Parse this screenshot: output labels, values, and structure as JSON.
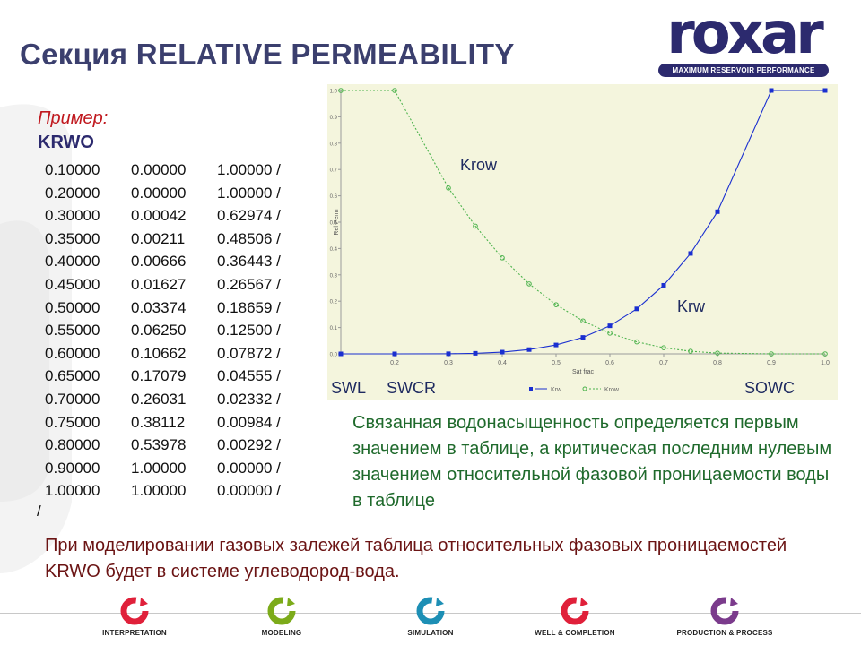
{
  "slide": {
    "title": "Секция RELATIVE PERMEABILITY"
  },
  "logo": {
    "wordmark": "roxar",
    "tagline": "MAXIMUM RESERVOIR PERFORMANCE",
    "color": "#2c2a6e"
  },
  "example": {
    "label": "Пример:",
    "keyword": "KRWO",
    "rows": [
      [
        "0.10000",
        "0.00000",
        "1.00000 /"
      ],
      [
        "0.20000",
        "0.00000",
        "1.00000 /"
      ],
      [
        "0.30000",
        "0.00042",
        "0.62974 /"
      ],
      [
        "0.35000",
        "0.00211",
        "0.48506 /"
      ],
      [
        "0.40000",
        "0.00666",
        "0.36443 /"
      ],
      [
        "0.45000",
        "0.01627",
        "0.26567 /"
      ],
      [
        "0.50000",
        "0.03374",
        "0.18659 /"
      ],
      [
        "0.55000",
        "0.06250",
        "0.12500 /"
      ],
      [
        "0.60000",
        "0.10662",
        "0.07872 /"
      ],
      [
        "0.65000",
        "0.17079",
        "0.04555 /"
      ],
      [
        "0.70000",
        "0.26031",
        "0.02332 /"
      ],
      [
        "0.75000",
        "0.38112",
        "0.00984 /"
      ],
      [
        "0.80000",
        "0.53978",
        "0.00292 /"
      ],
      [
        "0.90000",
        "1.00000",
        "0.00000 /"
      ],
      [
        "1.00000",
        "1.00000",
        "0.00000 /"
      ]
    ],
    "terminator": "/"
  },
  "chart_data": {
    "type": "line",
    "xlabel": "Sat  frac",
    "ylabel": "Rel Perm",
    "xlim": [
      0.1,
      1.0
    ],
    "ylim": [
      0.0,
      1.0
    ],
    "x_ticks": [
      "0.2",
      "0.3",
      "0.4",
      "0.5",
      "0.6",
      "0.7",
      "0.8",
      "0.9",
      "1.0"
    ],
    "y_ticks": [
      "0.0",
      "0.1",
      "0.2",
      "0.3",
      "0.4",
      "0.5",
      "0.6",
      "0.7",
      "0.8",
      "0.9",
      "1.0"
    ],
    "series": [
      {
        "name": "Krw",
        "color": "#1a2fd0",
        "marker": "square",
        "x": [
          0.1,
          0.2,
          0.3,
          0.35,
          0.4,
          0.45,
          0.5,
          0.55,
          0.6,
          0.65,
          0.7,
          0.75,
          0.8,
          0.9,
          1.0
        ],
        "y": [
          0.0,
          0.0,
          0.00042,
          0.00211,
          0.00666,
          0.01627,
          0.03374,
          0.0625,
          0.10662,
          0.17079,
          0.26031,
          0.38112,
          0.53978,
          1.0,
          1.0
        ]
      },
      {
        "name": "Krow",
        "color": "#4db34d",
        "marker": "circle",
        "x": [
          0.1,
          0.2,
          0.3,
          0.35,
          0.4,
          0.45,
          0.5,
          0.55,
          0.6,
          0.65,
          0.7,
          0.75,
          0.8,
          0.9,
          1.0
        ],
        "y": [
          1.0,
          1.0,
          0.62974,
          0.48506,
          0.36443,
          0.26567,
          0.18659,
          0.125,
          0.07872,
          0.04555,
          0.02332,
          0.00984,
          0.00292,
          0.0,
          0.0
        ]
      }
    ],
    "annotations": {
      "krow": "Krow",
      "krw": "Krw",
      "swl": "SWL",
      "swcr": "SWCR",
      "sowc": "SOWC"
    },
    "grid": false,
    "legend": "bottom"
  },
  "explanation": "Связанная водонасыщенность определяется первым значением в таблице, а критическая последним нулевым значением относительной фазовой проницаемости воды в таблице",
  "note": "При моделировании газовых залежей таблица относительных фазовых проницаемостей KRWO будет в системе углеводород-вода.",
  "footer": {
    "items": [
      {
        "label": "INTERPRETATION",
        "color": "#e0203a"
      },
      {
        "label": "MODELING",
        "color": "#7cab1a"
      },
      {
        "label": "SIMULATION",
        "color": "#1d8fb5"
      },
      {
        "label": "WELL & COMPLETION",
        "color": "#e0203a"
      },
      {
        "label": "PRODUCTION & PROCESS",
        "color": "#7b3b8c"
      }
    ]
  }
}
